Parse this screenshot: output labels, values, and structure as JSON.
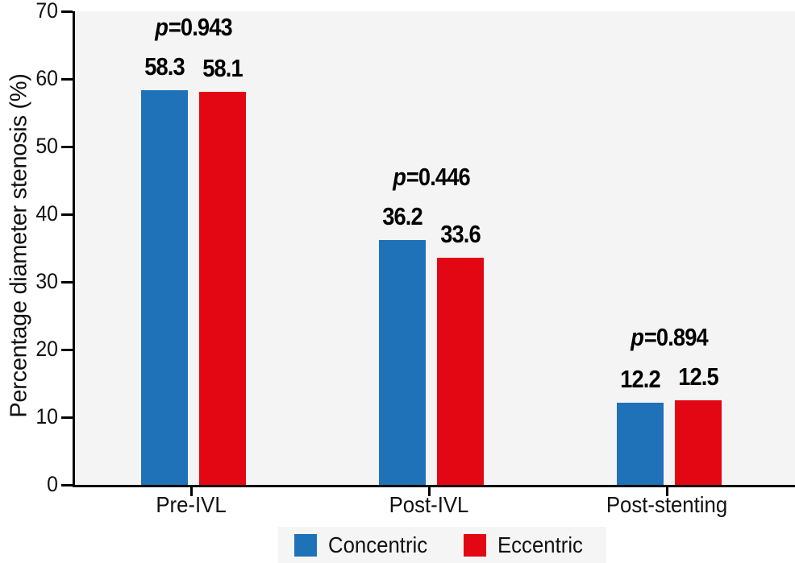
{
  "chart_data": {
    "type": "bar",
    "title": "",
    "ylabel": "Percentage diameter stenosis (%)",
    "xlabel": "",
    "ylim": [
      0,
      70
    ],
    "yticks": [
      0,
      10,
      20,
      30,
      40,
      50,
      60,
      70
    ],
    "grid": false,
    "legend_position": "bottom",
    "plot_background": "#F4F4F4",
    "axis_color": "#000000",
    "categories": [
      "Pre-IVL",
      "Post-IVL",
      "Post-stenting"
    ],
    "series": [
      {
        "name": "Concentric",
        "color": "#1F72B8",
        "values": [
          58.3,
          36.2,
          12.2
        ]
      },
      {
        "name": "Eccentric",
        "color": "#E30613",
        "values": [
          58.1,
          33.6,
          12.5
        ]
      }
    ],
    "p_values": [
      {
        "symbol": "p",
        "rest": "=0.943"
      },
      {
        "symbol": "p",
        "rest": "=0.446"
      },
      {
        "symbol": "p",
        "rest": "=0.894"
      }
    ],
    "legend": {
      "entries": [
        {
          "label": "Concentric",
          "color": "#1F72B8"
        },
        {
          "label": "Eccentric",
          "color": "#E30613"
        }
      ]
    }
  }
}
